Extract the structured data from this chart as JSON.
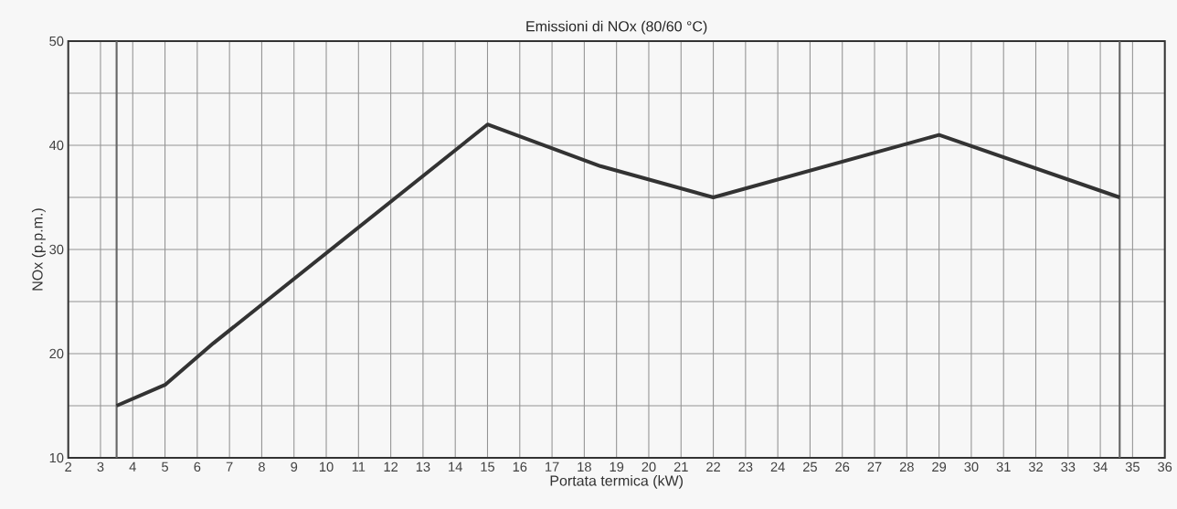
{
  "chart_data": {
    "type": "line",
    "title": "Emissioni di NOx (80/60 °C)",
    "xlabel": "Portata termica (kW)",
    "ylabel": "NOx (p.p.m.)",
    "x": [
      3.5,
      5,
      6.5,
      15,
      18.5,
      22,
      29,
      34.6
    ],
    "series": [
      {
        "color": "#333333",
        "values": [
          15,
          17,
          21,
          42,
          38,
          35,
          41,
          35
        ]
      }
    ],
    "xlim": [
      2,
      36
    ],
    "xticks": [
      2,
      3,
      4,
      5,
      6,
      7,
      8,
      9,
      10,
      11,
      12,
      13,
      14,
      15,
      16,
      17,
      18,
      19,
      20,
      21,
      22,
      23,
      24,
      25,
      26,
      27,
      28,
      29,
      30,
      31,
      32,
      33,
      34,
      35,
      36
    ],
    "ylim": [
      10,
      50
    ],
    "yticks": [
      10,
      {
        "value": 15,
        "label": null
      },
      20,
      {
        "value": 25,
        "label": null
      },
      30,
      {
        "value": 35,
        "label": null
      },
      40,
      {
        "value": 45,
        "label": null
      },
      50
    ],
    "ref_lines": [
      {
        "axis": "x",
        "value": 3.5,
        "color": "#666666"
      },
      {
        "axis": "x",
        "value": 34.6,
        "color": "#666666"
      }
    ],
    "grid": true,
    "line_style": "solid",
    "marker": "none"
  }
}
